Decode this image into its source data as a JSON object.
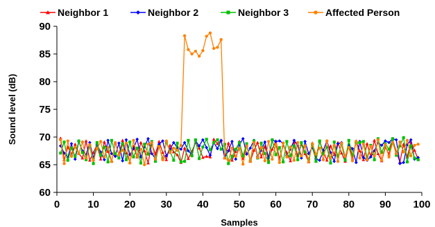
{
  "chart_data": {
    "type": "line",
    "title": "",
    "xlabel": "Samples",
    "ylabel": "Sound level  (dB)",
    "xlim": [
      0,
      100
    ],
    "ylim": [
      60,
      90
    ],
    "xticks": [
      0,
      10,
      20,
      30,
      40,
      50,
      60,
      70,
      80,
      90,
      100
    ],
    "yticks": [
      60,
      65,
      70,
      75,
      80,
      85,
      90
    ],
    "grid": false,
    "legend_position": "top",
    "x": [
      1,
      2,
      3,
      4,
      5,
      6,
      7,
      8,
      9,
      10,
      11,
      12,
      13,
      14,
      15,
      16,
      17,
      18,
      19,
      20,
      21,
      22,
      23,
      24,
      25,
      26,
      27,
      28,
      29,
      30,
      31,
      32,
      33,
      34,
      35,
      36,
      37,
      38,
      39,
      40,
      41,
      42,
      43,
      44,
      45,
      46,
      47,
      48,
      49,
      50,
      51,
      52,
      53,
      54,
      55,
      56,
      57,
      58,
      59,
      60,
      61,
      62,
      63,
      64,
      65,
      66,
      67,
      68,
      69,
      70,
      71,
      72,
      73,
      74,
      75,
      76,
      77,
      78,
      79,
      80,
      81,
      82,
      83,
      84,
      85,
      86,
      87,
      88,
      89,
      90,
      91,
      92,
      93,
      94,
      95,
      96,
      97,
      98,
      99
    ],
    "series": [
      {
        "name": "Neighbor 1",
        "color": "#ff0000",
        "marker": "triangle",
        "values": [
          69.8,
          65.9,
          68.2,
          66.9,
          68.7,
          67.0,
          66.2,
          69.3,
          65.8,
          67.2,
          68.6,
          66.0,
          69.1,
          67.4,
          65.6,
          68.9,
          66.8,
          69.4,
          67.1,
          65.5,
          68.3,
          66.4,
          69.0,
          67.5,
          65.3,
          68.8,
          66.9,
          69.2,
          67.2,
          65.9,
          68.5,
          67.3,
          66.8,
          65.4,
          68.0,
          66.1,
          67.4,
          69.0,
          68.0,
          66.3,
          66.5,
          66.4,
          69.6,
          68.8,
          69.4,
          66.2,
          68.9,
          65.8,
          67.4,
          69.2,
          66.1,
          68.6,
          65.6,
          67.6,
          69.0,
          66.4,
          68.3,
          65.9,
          67.8,
          69.3,
          66.0,
          68.5,
          67.2,
          65.7,
          69.1,
          66.6,
          68.7,
          67.0,
          65.5,
          68.9,
          66.3,
          69.2,
          67.4,
          65.8,
          68.4,
          66.8,
          69.0,
          67.1,
          65.6,
          68.6,
          66.2,
          69.3,
          67.5,
          65.9,
          68.8,
          66.5,
          69.4,
          67.0,
          65.7,
          68.2,
          66.9,
          69.6,
          67.3,
          65.5,
          68.7,
          66.4,
          69.1,
          67.6,
          66.0
        ]
      },
      {
        "name": "Neighbor 2",
        "color": "#0000ff",
        "marker": "diamond",
        "values": [
          68.4,
          67.1,
          66.3,
          68.8,
          66.0,
          69.2,
          67.5,
          66.8,
          69.0,
          66.2,
          68.6,
          67.3,
          65.9,
          69.4,
          67.0,
          66.5,
          68.9,
          65.7,
          69.5,
          66.8,
          67.9,
          69.6,
          66.4,
          68.2,
          69.7,
          67.0,
          66.1,
          68.7,
          69.3,
          66.6,
          67.8,
          69.0,
          68.1,
          67.8,
          69.0,
          67.5,
          66.8,
          69.3,
          68.4,
          69.5,
          68.1,
          66.7,
          69.0,
          67.9,
          69.4,
          66.3,
          67.5,
          69.2,
          66.0,
          68.6,
          69.7,
          66.9,
          68.0,
          69.4,
          66.5,
          67.6,
          69.1,
          66.2,
          69.5,
          69.2,
          69.3,
          68.9,
          66.7,
          67.8,
          69.4,
          68.5,
          66.2,
          69.2,
          67.0,
          68.1,
          66.0,
          65.8,
          67.6,
          69.3,
          67.2,
          65.6,
          68.8,
          69.0,
          66.4,
          68.5,
          67.9,
          65.4,
          69.2,
          66.3,
          65.8,
          66.4,
          67.5,
          69.0,
          68.5,
          69.3,
          69.0,
          69.7,
          69.5,
          65.2,
          65.4,
          68.6,
          69.5,
          66.0,
          66.3
        ]
      },
      {
        "name": "Neighbor 3",
        "color": "#00c000",
        "marker": "square",
        "values": [
          67.1,
          69.1,
          65.8,
          68.0,
          66.5,
          69.3,
          67.2,
          65.9,
          68.4,
          65.2,
          69.0,
          66.7,
          68.2,
          65.5,
          69.4,
          67.0,
          66.2,
          68.8,
          65.9,
          69.1,
          66.4,
          68.0,
          65.3,
          68.7,
          66.9,
          69.2,
          65.6,
          68.3,
          66.1,
          69.0,
          67.4,
          65.8,
          68.9,
          65.5,
          65.6,
          69.4,
          66.6,
          69.5,
          66.1,
          68.2,
          69.6,
          67.7,
          69.0,
          69.5,
          67.8,
          68.7,
          65.2,
          66.5,
          67.8,
          69.0,
          66.6,
          68.8,
          65.7,
          69.3,
          66.2,
          68.9,
          67.0,
          65.4,
          69.5,
          66.8,
          68.1,
          65.5,
          69.2,
          66.6,
          68.4,
          65.9,
          69.0,
          67.3,
          66.0,
          68.6,
          65.6,
          69.3,
          66.9,
          68.2,
          65.3,
          69.1,
          66.5,
          68.7,
          65.8,
          69.4,
          66.7,
          68.9,
          69.0,
          69.2,
          66.3,
          68.5,
          65.9,
          69.7,
          67.2,
          68.8,
          67.8,
          69.7,
          66.7,
          68.4,
          69.9,
          65.5,
          68.4,
          66.2,
          65.9
        ]
      },
      {
        "name": "Affected Person",
        "color": "#ff8000",
        "marker": "circle",
        "values": [
          69.5,
          65.2,
          69.3,
          66.5,
          68.2,
          67.0,
          69.1,
          66.2,
          68.6,
          65.8,
          67.9,
          69.2,
          66.4,
          68.1,
          65.6,
          69.0,
          66.8,
          67.6,
          68.9,
          65.3,
          69.4,
          66.5,
          67.8,
          65.0,
          68.7,
          69.0,
          66.0,
          68.3,
          65.9,
          69.3,
          67.2,
          68.0,
          67.6,
          68.5,
          88.3,
          85.8,
          85.0,
          85.5,
          84.6,
          85.6,
          88.2,
          88.8,
          86.0,
          86.2,
          87.6,
          66.2,
          65.8,
          68.0,
          66.5,
          67.9,
          65.1,
          68.4,
          65.6,
          69.0,
          66.3,
          68.1,
          65.7,
          69.2,
          66.0,
          68.6,
          65.4,
          68.9,
          66.4,
          68.2,
          65.8,
          69.0,
          66.6,
          68.4,
          65.5,
          68.8,
          66.9,
          68.0,
          65.9,
          69.3,
          66.2,
          68.5,
          65.6,
          68.9,
          66.5,
          68.1,
          65.7,
          69.2,
          66.2,
          68.7,
          65.9,
          68.3,
          66.6,
          69.5,
          65.8,
          68.6,
          66.4,
          69.0,
          67.0,
          69.1,
          67.3,
          69.4,
          66.6,
          68.5,
          68.7
        ]
      }
    ]
  }
}
